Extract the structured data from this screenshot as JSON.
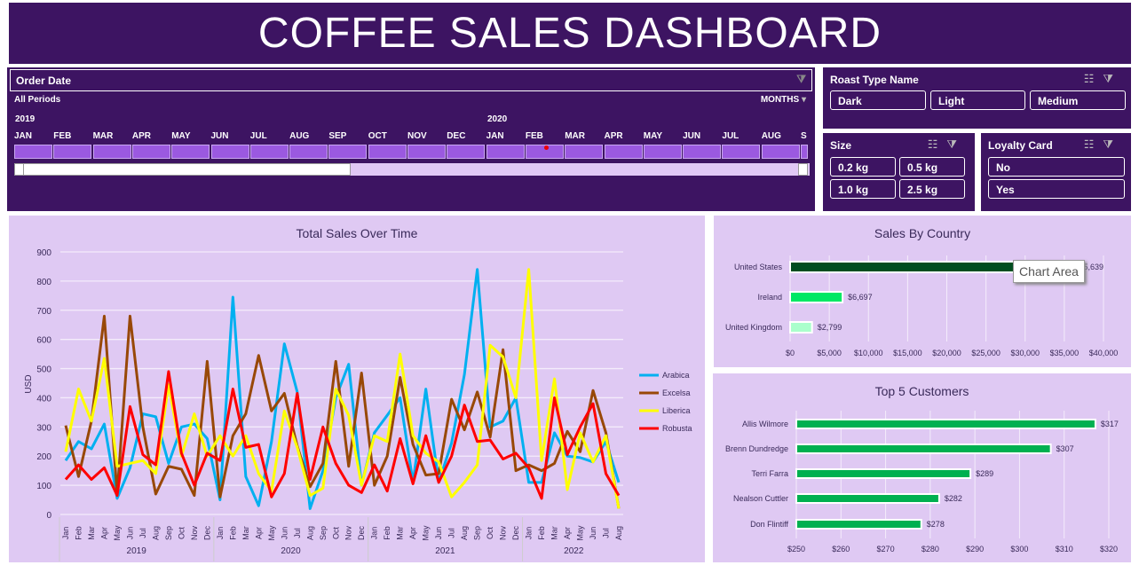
{
  "header": {
    "title": "COFFEE SALES DASHBOARD"
  },
  "order_date": {
    "title": "Order Date",
    "period": "All Periods",
    "granularity": "MONTHS",
    "years": [
      "2019",
      "2020"
    ],
    "months": [
      "JAN",
      "FEB",
      "MAR",
      "APR",
      "MAY",
      "JUN",
      "JUL",
      "AUG",
      "SEP",
      "OCT",
      "NOV",
      "DEC",
      "JAN",
      "FEB",
      "MAR",
      "APR",
      "MAY",
      "JUN",
      "JUL",
      "AUG",
      "S"
    ]
  },
  "roast": {
    "title": "Roast Type Name",
    "items": [
      "Dark",
      "Light",
      "Medium"
    ]
  },
  "size": {
    "title": "Size",
    "items": [
      "0.2 kg",
      "0.5 kg",
      "1.0 kg",
      "2.5 kg"
    ]
  },
  "loyalty": {
    "title": "Loyalty Card",
    "items": [
      "No",
      "Yes"
    ]
  },
  "colors": {
    "header": "#3d1462",
    "panel": "#dfc9f3",
    "cell": "#9b59e0",
    "arabica": "#00b0f0",
    "excelsa": "#984807",
    "liberica": "#ffff00",
    "robusta": "#ff0000"
  },
  "tooltip": "Chart Area",
  "chart_data": [
    {
      "type": "line",
      "title": "Total Sales Over Time",
      "ylabel": "USD",
      "ylim": [
        0,
        900
      ],
      "yticks": [
        0,
        100,
        200,
        300,
        400,
        500,
        600,
        700,
        800,
        900
      ],
      "grid": true,
      "legend": "right",
      "month_labels": [
        "Jan",
        "Feb",
        "Mar",
        "Apr",
        "May",
        "Jun",
        "Jul",
        "Aug",
        "Sep",
        "Oct",
        "Nov",
        "Dec"
      ],
      "years": [
        "2019",
        "2020",
        "2021",
        "2022"
      ],
      "x_start": "2019-01",
      "x_end": "2022-08",
      "series": [
        {
          "name": "Arabica",
          "color": "#00b0f0",
          "values": [
            185,
            250,
            225,
            310,
            55,
            160,
            345,
            335,
            175,
            300,
            310,
            260,
            50,
            745,
            130,
            30,
            250,
            585,
            420,
            20,
            150,
            400,
            515,
            100,
            280,
            340,
            400,
            110,
            430,
            110,
            245,
            480,
            840,
            300,
            320,
            400,
            110,
            110,
            280,
            200,
            195,
            180,
            250,
            110
          ]
        },
        {
          "name": "Excelsa",
          "color": "#984807",
          "values": [
            305,
            130,
            320,
            680,
            70,
            680,
            300,
            70,
            165,
            155,
            65,
            525,
            60,
            270,
            345,
            545,
            355,
            415,
            235,
            95,
            175,
            525,
            165,
            485,
            100,
            200,
            470,
            240,
            135,
            140,
            395,
            290,
            420,
            265,
            565,
            150,
            170,
            150,
            175,
            285,
            215,
            425,
            280,
            20
          ]
        },
        {
          "name": "Liberica",
          "color": "#ffff00",
          "values": [
            215,
            430,
            320,
            535,
            165,
            175,
            185,
            140,
            445,
            200,
            345,
            200,
            270,
            200,
            270,
            140,
            80,
            355,
            230,
            65,
            90,
            430,
            340,
            100,
            270,
            250,
            550,
            270,
            210,
            180,
            60,
            110,
            170,
            580,
            540,
            400,
            840,
            185,
            465,
            85,
            280,
            180,
            270,
            20
          ]
        },
        {
          "name": "Robusta",
          "color": "#ff0000",
          "values": [
            120,
            170,
            120,
            160,
            65,
            370,
            205,
            170,
            490,
            210,
            100,
            210,
            185,
            430,
            230,
            240,
            60,
            140,
            415,
            120,
            300,
            175,
            100,
            75,
            170,
            80,
            260,
            105,
            270,
            110,
            200,
            375,
            250,
            255,
            190,
            210,
            160,
            55,
            400,
            205,
            300,
            380,
            140,
            65
          ]
        }
      ]
    },
    {
      "type": "bar",
      "orientation": "horizontal",
      "title": "Sales By Country",
      "categories": [
        "United States",
        "Ireland",
        "United Kingdom"
      ],
      "values": [
        35639,
        6697,
        2799
      ],
      "labels": [
        "$35,639",
        "$6,697",
        "$2,799"
      ],
      "colors": [
        "#004d1f",
        "#00e864",
        "#aaffcc"
      ],
      "xlim": [
        0,
        40000
      ],
      "xticks": [
        "$0",
        "$5,000",
        "$10,000",
        "$15,000",
        "$20,000",
        "$25,000",
        "$30,000",
        "$35,000",
        "$40,000"
      ]
    },
    {
      "type": "bar",
      "orientation": "horizontal",
      "title": "Top 5 Customers",
      "categories": [
        "Allis Wilmore",
        "Brenn Dundredge",
        "Terri Farra",
        "Nealson Cuttler",
        "Don Flintiff"
      ],
      "values": [
        317,
        307,
        289,
        282,
        278
      ],
      "labels": [
        "$317",
        "$307",
        "$289",
        "$282",
        "$278"
      ],
      "color": "#00b050",
      "xlim": [
        250,
        320
      ],
      "xticks": [
        "$250",
        "$260",
        "$270",
        "$280",
        "$290",
        "$300",
        "$310",
        "$320"
      ]
    }
  ]
}
